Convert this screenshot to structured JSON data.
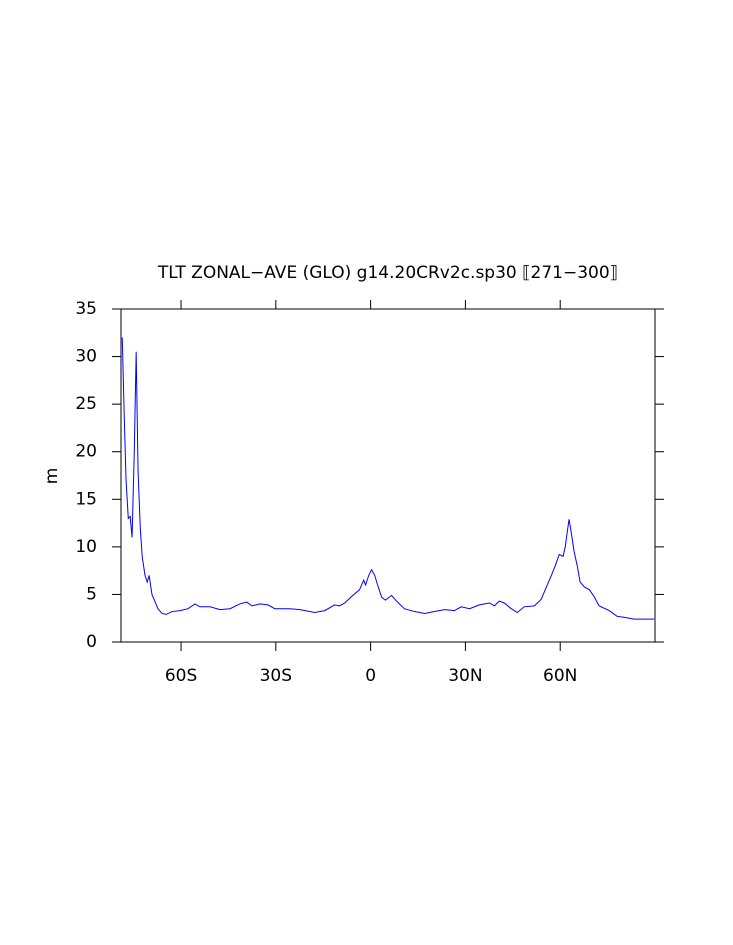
{
  "chart_data": {
    "type": "line",
    "title": "TLT ZONAL−AVE (GLO) g14.20CRv2c.sp30 ⟦271−300⟧",
    "y_label": "m",
    "x": [
      -78.6,
      -78,
      -77.4,
      -76.7,
      -76.1,
      -75.5,
      -74.8,
      -74.2,
      -73.6,
      -72.9,
      -72.3,
      -71.4,
      -70.7,
      -70.1,
      -69.2,
      -68.2,
      -67.3,
      -66,
      -64.7,
      -62.8,
      -60.3,
      -57.8,
      -55.6,
      -54,
      -50.8,
      -47.7,
      -44.5,
      -41.4,
      -39.2,
      -37.6,
      -35,
      -32.5,
      -30.3,
      -25.6,
      -22.4,
      -19.3,
      -17.7,
      -14.5,
      -11.4,
      -9.8,
      -8.2,
      -6,
      -3.5,
      -2.2,
      -1.6,
      -0.6,
      0.3,
      1.3,
      2.2,
      3.5,
      4.7,
      6.6,
      8.5,
      10.7,
      13.9,
      17.1,
      20.2,
      23.4,
      26.5,
      28.7,
      31.3,
      34.4,
      37.6,
      39.2,
      40.7,
      42.3,
      44.5,
      46.4,
      48.6,
      51.8,
      54,
      55.9,
      57.2,
      58.4,
      59.7,
      60.9,
      61.6,
      62.2,
      62.8,
      63.5,
      64.4,
      65.4,
      66.3,
      67.6,
      69.2,
      70.7,
      72.3,
      75.5,
      78,
      80.2,
      83.4,
      89.7
    ],
    "series": [
      {
        "name": "TLT",
        "color": "#0000ff",
        "values": [
          32,
          24,
          17,
          13,
          13.2,
          11,
          20,
          30.5,
          18,
          12,
          9,
          7,
          6.3,
          7,
          5,
          4.2,
          3.5,
          3,
          2.9,
          3.2,
          3.3,
          3.5,
          4,
          3.7,
          3.7,
          3.4,
          3.5,
          4,
          4.2,
          3.8,
          4,
          3.9,
          3.5,
          3.5,
          3.4,
          3.2,
          3.1,
          3.3,
          3.9,
          3.8,
          4.1,
          4.8,
          5.5,
          6.5,
          6,
          7,
          7.6,
          7,
          6,
          4.7,
          4.4,
          4.9,
          4.2,
          3.5,
          3.2,
          3,
          3.2,
          3.4,
          3.3,
          3.7,
          3.5,
          3.9,
          4.1,
          3.8,
          4.3,
          4.1,
          3.5,
          3.1,
          3.7,
          3.8,
          4.5,
          6,
          7,
          8,
          9.2,
          9,
          10,
          11.5,
          12.9,
          11.5,
          9.5,
          8,
          6.3,
          5.8,
          5.5,
          4.8,
          3.8,
          3.3,
          2.7,
          2.6,
          2.4,
          2.4
        ]
      }
    ],
    "xlim": [
      -79,
      90
    ],
    "xticks": [
      {
        "value": -60,
        "label": "60S"
      },
      {
        "value": -30,
        "label": "30S"
      },
      0,
      {
        "value": 30,
        "label": "30N"
      },
      {
        "value": 60,
        "label": "60N"
      }
    ],
    "ylim": [
      0,
      35
    ],
    "yticks": [
      0,
      5,
      10,
      15,
      20,
      25,
      30,
      35
    ]
  }
}
